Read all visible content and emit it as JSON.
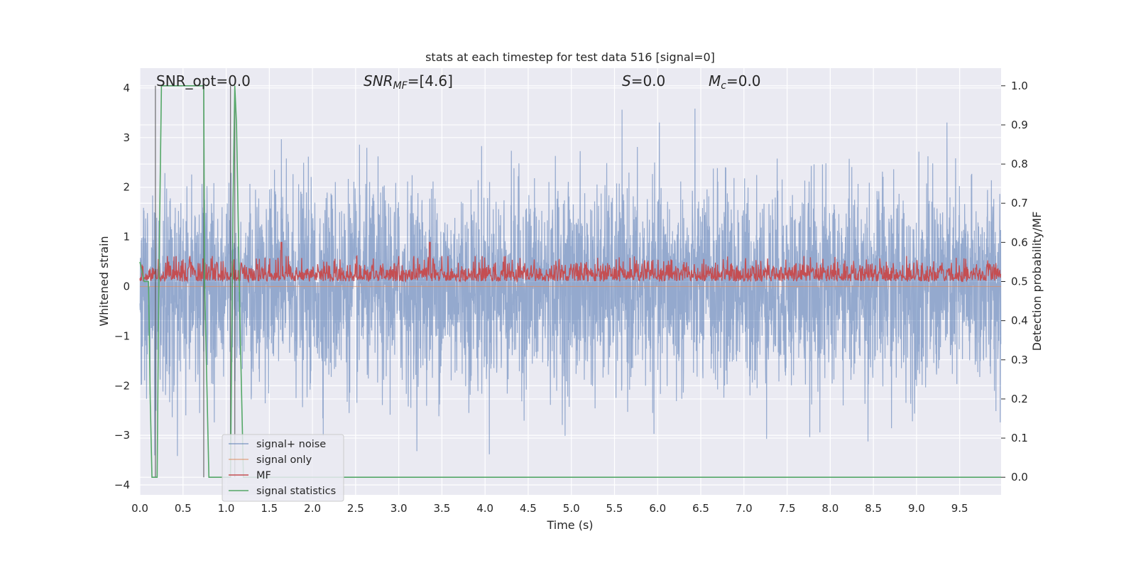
{
  "chart_data": {
    "type": "line",
    "title": "stats at each timestep for test data 516 [signal=0]",
    "xlabel": "Time (s)",
    "ylabel": "Whitened strain",
    "y2label": "Detection probability/MF",
    "xlim": [
      0,
      9.98
    ],
    "ylim": [
      -4.2,
      4.4
    ],
    "y2lim": [
      -0.045,
      1.045
    ],
    "xticks": [
      "0.0",
      "0.5",
      "1.0",
      "1.5",
      "2.0",
      "2.5",
      "3.0",
      "3.5",
      "4.0",
      "4.5",
      "5.0",
      "5.5",
      "6.0",
      "6.5",
      "7.0",
      "7.5",
      "8.0",
      "8.5",
      "9.0",
      "9.5"
    ],
    "yticks": [
      "4",
      "3",
      "2",
      "1",
      "0",
      "−1",
      "−2",
      "−3",
      "−4"
    ],
    "y2ticks": [
      "1.0",
      "0.9",
      "0.8",
      "0.7",
      "0.6",
      "0.5",
      "0.4",
      "0.3",
      "0.2",
      "0.1",
      "0.0"
    ],
    "grid": true,
    "legend_position": "lower-left",
    "annotations": {
      "snr_opt": "SNR_opt=0.0",
      "snr_mf_label": "SNR",
      "snr_mf_sub": "MF",
      "snr_mf_value": "=[4.6]",
      "s_label": "S",
      "s_value": "=0.0",
      "mc_label": "M",
      "mc_sub": "c",
      "mc_value": "=0.0"
    },
    "series": [
      {
        "name": "signal+ noise",
        "color": "#4c72b0",
        "axis": "left",
        "sample_rate_hz": 400,
        "noise_std": 1.0
      },
      {
        "name": "signal only",
        "color": "#dd8452",
        "axis": "left",
        "values": [
          0
        ]
      },
      {
        "name": "MF",
        "color": "#c44e52",
        "axis": "right",
        "baseline": 0.5,
        "spikes": [
          {
            "x": 1.64,
            "y": 0.6
          },
          {
            "x": 3.36,
            "y": 0.6
          }
        ]
      },
      {
        "name": "signal statistics",
        "color": "#55a868",
        "axis": "right",
        "x": [
          0.0,
          0.05,
          0.1,
          0.12,
          0.14,
          0.18,
          0.2,
          0.22,
          0.25,
          0.74,
          0.75,
          0.8,
          1.05,
          1.08,
          1.1,
          1.12,
          1.16,
          1.2,
          9.98
        ],
        "y": [
          0.55,
          0.5,
          0.5,
          0.2,
          0.0,
          0.0,
          0.0,
          0.5,
          1.0,
          1.0,
          0.5,
          0.0,
          0.0,
          0.7,
          1.0,
          0.9,
          0.4,
          0.0,
          0.0
        ]
      }
    ],
    "vlines": [
      0.18,
      0.74,
      1.05,
      1.1
    ]
  }
}
